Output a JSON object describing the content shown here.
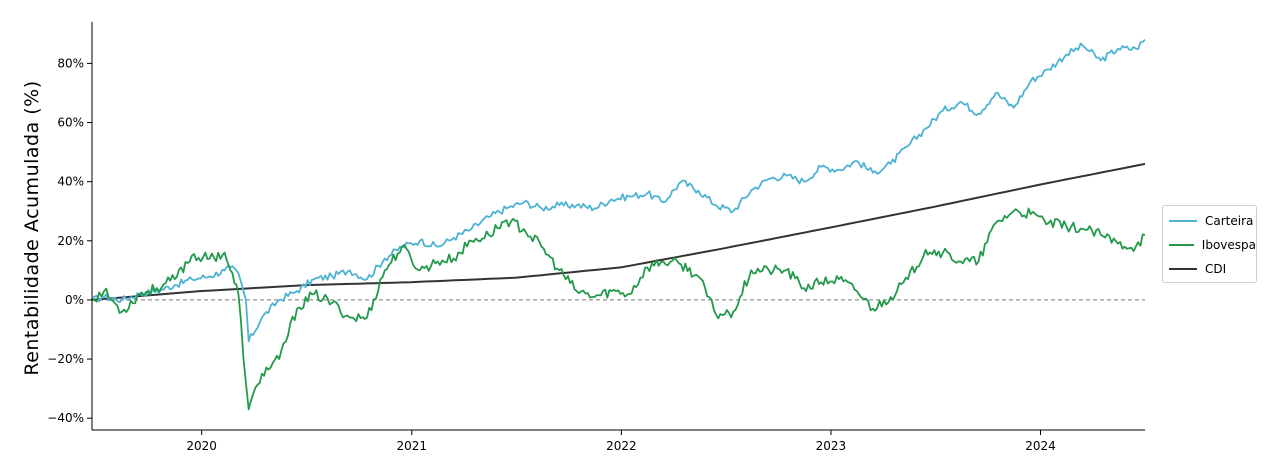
{
  "chart_data": {
    "type": "line",
    "ylabel": "Rentabilidade Acumulada (%)",
    "xlabel": "",
    "x_ticks": [
      "2020",
      "2021",
      "2022",
      "2023",
      "2024"
    ],
    "y_ticks": [
      "−40%",
      "−20%",
      "0%",
      "20%",
      "40%",
      "60%",
      "80%"
    ],
    "xlim": [
      "2019-06-24",
      "2024-07-01"
    ],
    "ylim": [
      -44,
      94
    ],
    "zero_line": true,
    "legend_position": "right",
    "colors": {
      "Carteira": "#4eb3d3",
      "Ibovespa": "#23994b",
      "CDI": "#333333"
    },
    "series": [
      {
        "name": "Carteira",
        "x": [
          "2019-06-24",
          "2019-07-15",
          "2019-08-15",
          "2019-09-15",
          "2019-10-15",
          "2019-11-15",
          "2019-12-15",
          "2020-01-15",
          "2020-02-10",
          "2020-02-20",
          "2020-03-05",
          "2020-03-18",
          "2020-03-23",
          "2020-04-15",
          "2020-05-15",
          "2020-06-15",
          "2020-07-15",
          "2020-08-15",
          "2020-09-15",
          "2020-10-15",
          "2020-11-15",
          "2020-12-15",
          "2021-01-15",
          "2021-02-15",
          "2021-03-15",
          "2021-04-15",
          "2021-05-15",
          "2021-06-15",
          "2021-07-15",
          "2021-08-15",
          "2021-09-15",
          "2021-10-15",
          "2021-11-15",
          "2021-12-15",
          "2022-01-15",
          "2022-02-15",
          "2022-03-15",
          "2022-04-15",
          "2022-05-15",
          "2022-06-15",
          "2022-07-15",
          "2022-08-15",
          "2022-09-15",
          "2022-10-15",
          "2022-11-15",
          "2022-12-15",
          "2023-01-15",
          "2023-02-15",
          "2023-03-15",
          "2023-04-15",
          "2023-05-15",
          "2023-06-15",
          "2023-07-15",
          "2023-08-15",
          "2023-09-15",
          "2023-10-15",
          "2023-11-15",
          "2023-12-15",
          "2024-01-15",
          "2024-02-15",
          "2024-03-15",
          "2024-04-15",
          "2024-05-15",
          "2024-06-15",
          "2024-07-01"
        ],
        "y": [
          0,
          1,
          0,
          2,
          3,
          5,
          7,
          8,
          10,
          11,
          9,
          0,
          -14,
          -6,
          0,
          3,
          7,
          8,
          10,
          7,
          14,
          18,
          20,
          18,
          21,
          24,
          28,
          31,
          33,
          31,
          32,
          32,
          31,
          34,
          35,
          36,
          33,
          40,
          37,
          32,
          30,
          37,
          41,
          42,
          40,
          45,
          44,
          47,
          43,
          46,
          52,
          58,
          64,
          67,
          63,
          70,
          65,
          74,
          78,
          83,
          86,
          81,
          85,
          85,
          88
        ]
      },
      {
        "name": "Ibovespa",
        "x": [
          "2019-06-24",
          "2019-07-15",
          "2019-08-15",
          "2019-09-15",
          "2019-10-15",
          "2019-11-15",
          "2019-12-15",
          "2020-01-15",
          "2020-02-10",
          "2020-02-20",
          "2020-03-05",
          "2020-03-18",
          "2020-03-23",
          "2020-04-15",
          "2020-05-15",
          "2020-06-15",
          "2020-07-15",
          "2020-08-15",
          "2020-09-15",
          "2020-10-15",
          "2020-11-15",
          "2020-12-15",
          "2021-01-15",
          "2021-02-15",
          "2021-03-15",
          "2021-04-15",
          "2021-05-15",
          "2021-06-15",
          "2021-07-15",
          "2021-08-15",
          "2021-09-15",
          "2021-10-15",
          "2021-11-15",
          "2021-12-15",
          "2022-01-15",
          "2022-02-15",
          "2022-03-15",
          "2022-04-15",
          "2022-05-15",
          "2022-06-15",
          "2022-07-15",
          "2022-08-15",
          "2022-09-15",
          "2022-10-15",
          "2022-11-15",
          "2022-12-15",
          "2023-01-15",
          "2023-02-15",
          "2023-03-15",
          "2023-04-15",
          "2023-05-15",
          "2023-06-15",
          "2023-07-15",
          "2023-08-15",
          "2023-09-15",
          "2023-10-15",
          "2023-11-15",
          "2023-12-15",
          "2024-01-15",
          "2024-02-15",
          "2024-03-15",
          "2024-04-15",
          "2024-05-15",
          "2024-06-15",
          "2024-07-01"
        ],
        "y": [
          0,
          3,
          -4,
          2,
          4,
          7,
          15,
          14,
          16,
          10,
          2,
          -28,
          -37,
          -25,
          -20,
          -3,
          2,
          -1,
          -6,
          -6,
          10,
          18,
          10,
          13,
          14,
          20,
          22,
          27,
          24,
          18,
          10,
          3,
          1,
          3,
          2,
          11,
          13,
          12,
          8,
          -5,
          -4,
          10,
          10,
          10,
          4,
          6,
          7,
          3,
          -3,
          1,
          7,
          17,
          16,
          13,
          13,
          26,
          30,
          29,
          26,
          25,
          24,
          22,
          19,
          18,
          22
        ]
      },
      {
        "name": "CDI",
        "x": [
          "2019-06-24",
          "2019-12-31",
          "2020-06-30",
          "2020-12-31",
          "2021-06-30",
          "2021-12-31",
          "2022-06-30",
          "2022-12-31",
          "2023-06-30",
          "2023-12-31",
          "2024-07-01"
        ],
        "y": [
          0,
          3.0,
          5.0,
          6.0,
          7.5,
          11.0,
          17.5,
          24.5,
          31.5,
          39.0,
          46.0
        ]
      }
    ]
  }
}
